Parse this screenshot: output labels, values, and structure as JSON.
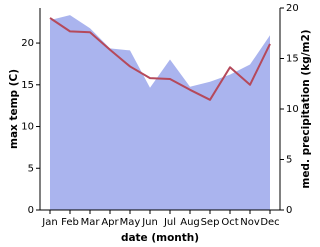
{
  "chart_data": {
    "type": "line_area",
    "categories": [
      "Jan",
      "Feb",
      "Mar",
      "Apr",
      "May",
      "Jun",
      "Jul",
      "Aug",
      "Sep",
      "Oct",
      "Nov",
      "Dec"
    ],
    "xlabel": "date (month)",
    "ylabel": "max temp (C)",
    "y2label": "med. precipitation (kg/m2)",
    "ylim": [
      0,
      24.2
    ],
    "yticks": [
      0,
      5,
      10,
      15,
      20
    ],
    "y2lim": [
      0,
      20
    ],
    "y2ticks": [
      0,
      5,
      10,
      15,
      20
    ],
    "series": [
      {
        "name": "max temp",
        "type": "line",
        "color": "#b5495b",
        "values": [
          23.0,
          21.4,
          21.3,
          19.2,
          17.2,
          15.8,
          15.7,
          14.4,
          13.2,
          17.1,
          15.0,
          19.9
        ]
      },
      {
        "name": "med. precipitation",
        "type": "area",
        "axis": "y2",
        "color": "#aab4ee",
        "values": [
          18.8,
          19.3,
          18.0,
          16.0,
          15.8,
          12.1,
          14.9,
          12.2,
          12.7,
          13.4,
          14.4,
          17.3
        ]
      }
    ]
  }
}
